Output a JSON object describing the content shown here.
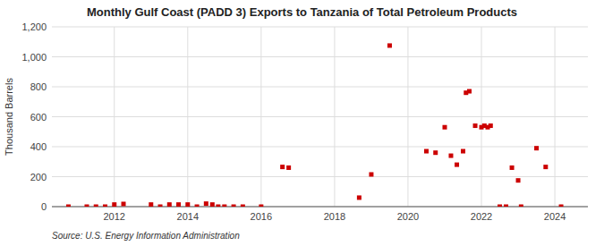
{
  "chart_data": {
    "type": "scatter",
    "title": "Monthly Gulf Coast (PADD 3) Exports to Tanzania of Total Petroleum Products",
    "ylabel": "Thousand Barrels",
    "annotations": [
      "Source: U.S. Energy Information Administration"
    ],
    "color": "#cc0000",
    "marker": "square",
    "grid": true,
    "xlim": [
      2010.3,
      2024.9
    ],
    "xticks": [
      2012,
      2014,
      2016,
      2018,
      2020,
      2022,
      2024
    ],
    "ylim": [
      0,
      1200
    ],
    "yticks": [
      0,
      200,
      400,
      600,
      800,
      {
        "value": 1000,
        "label": "1,000"
      },
      {
        "value": 1200,
        "label": "1,200"
      }
    ],
    "x": [
      2010.75,
      2011.25,
      2011.5,
      2011.75,
      2012.0,
      2012.25,
      2013.0,
      2013.25,
      2013.5,
      2013.75,
      2014.0,
      2014.25,
      2014.5,
      2014.67,
      2014.83,
      2015.0,
      2015.25,
      2015.5,
      2016.0,
      2016.58,
      2016.75,
      2018.67,
      2019.0,
      2019.5,
      2020.5,
      2020.75,
      2021.0,
      2021.17,
      2021.33,
      2021.5,
      2021.58,
      2021.67,
      2021.83,
      2022.0,
      2022.08,
      2022.17,
      2022.25,
      2022.5,
      2022.67,
      2022.83,
      2023.0,
      2023.08,
      2023.5,
      2023.75,
      2024.17
    ],
    "values": [
      0,
      0,
      0,
      0,
      14,
      18,
      14,
      0,
      14,
      14,
      14,
      0,
      20,
      14,
      0,
      0,
      0,
      0,
      0,
      265,
      260,
      60,
      215,
      1075,
      370,
      360,
      530,
      340,
      280,
      370,
      760,
      770,
      540,
      530,
      540,
      530,
      540,
      0,
      0,
      260,
      175,
      0,
      390,
      265,
      0
    ]
  }
}
